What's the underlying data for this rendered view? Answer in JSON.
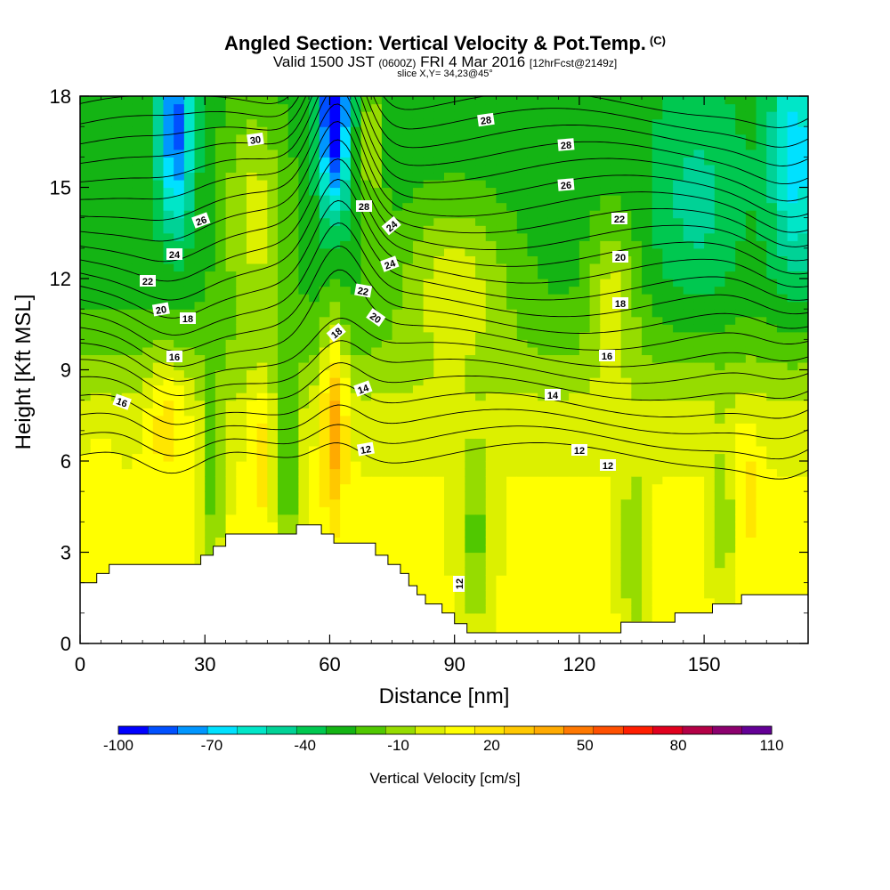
{
  "header": {
    "title": "Angled Section: Vertical Velocity & Pot.Temp.",
    "title_suffix": "(C)",
    "valid_prefix": "Valid 1500 JST",
    "valid_utc": "(0600Z)",
    "valid_date": "FRI 4 Mar 2016",
    "forecast": "[12hrFcst@2149z]",
    "slice": "slice X,Y= 34,23@45°"
  },
  "chart_data": {
    "type": "heatmap",
    "title": "Angled Section: Vertical Velocity & Pot.Temp.",
    "xlabel": "Distance [nm]",
    "ylabel": "Height [Kft MSL]",
    "xlim": [
      0,
      175
    ],
    "ylim": [
      0,
      18
    ],
    "x_ticks": [
      0,
      30,
      60,
      90,
      120,
      150
    ],
    "y_ticks": [
      0,
      3,
      6,
      9,
      12,
      15,
      18
    ],
    "colorbar": {
      "title": "Vertical Velocity [cm/s]",
      "tick_labels": [
        "-100",
        "-70",
        "-40",
        "-10",
        "20",
        "50",
        "80",
        "110"
      ],
      "bounds": [
        -100,
        110
      ],
      "step": 10,
      "colors": [
        "#0000ff",
        "#0050ff",
        "#0096ff",
        "#00e1ff",
        "#00e6c8",
        "#00d296",
        "#00c850",
        "#14b414",
        "#50c800",
        "#96dc00",
        "#dcf000",
        "#ffff00",
        "#ffe600",
        "#ffc800",
        "#ffaa00",
        "#ff7800",
        "#ff5000",
        "#ff1e00",
        "#e1001e",
        "#b40046",
        "#8c006e",
        "#640096"
      ]
    },
    "contour_labels": [
      "30",
      "28",
      "28",
      "28",
      "26",
      "26",
      "24",
      "24",
      "24",
      "22",
      "22",
      "22",
      "20",
      "20",
      "20",
      "18",
      "18",
      "18",
      "16",
      "16",
      "16",
      "14",
      "14",
      "12",
      "12"
    ],
    "contour_values": [
      12,
      14,
      16,
      18,
      20,
      22,
      24,
      26,
      28,
      30
    ],
    "terrain_kft": [
      [
        0,
        2.0
      ],
      [
        4,
        2.0
      ],
      [
        4,
        2.3
      ],
      [
        7,
        2.3
      ],
      [
        7,
        2.6
      ],
      [
        29,
        2.6
      ],
      [
        29,
        2.9
      ],
      [
        32,
        2.9
      ],
      [
        32,
        3.2
      ],
      [
        35,
        3.2
      ],
      [
        35,
        3.6
      ],
      [
        52,
        3.6
      ],
      [
        52,
        3.9
      ],
      [
        58,
        3.9
      ],
      [
        58,
        3.6
      ],
      [
        61,
        3.6
      ],
      [
        61,
        3.3
      ],
      [
        71,
        3.3
      ],
      [
        71,
        2.9
      ],
      [
        74,
        2.9
      ],
      [
        74,
        2.6
      ],
      [
        77,
        2.6
      ],
      [
        77,
        2.3
      ],
      [
        79,
        2.3
      ],
      [
        79,
        1.9
      ],
      [
        81,
        1.9
      ],
      [
        81,
        1.6
      ],
      [
        83,
        1.6
      ],
      [
        83,
        1.3
      ],
      [
        87,
        1.3
      ],
      [
        87,
        1.0
      ],
      [
        90,
        1.0
      ],
      [
        90,
        0.65
      ],
      [
        93,
        0.65
      ],
      [
        93,
        0.35
      ],
      [
        130,
        0.35
      ],
      [
        130,
        0.7
      ],
      [
        143,
        0.7
      ],
      [
        143,
        1.0
      ],
      [
        152,
        1.0
      ],
      [
        152,
        1.3
      ],
      [
        159,
        1.3
      ],
      [
        159,
        1.6
      ],
      [
        175,
        1.6
      ]
    ]
  }
}
